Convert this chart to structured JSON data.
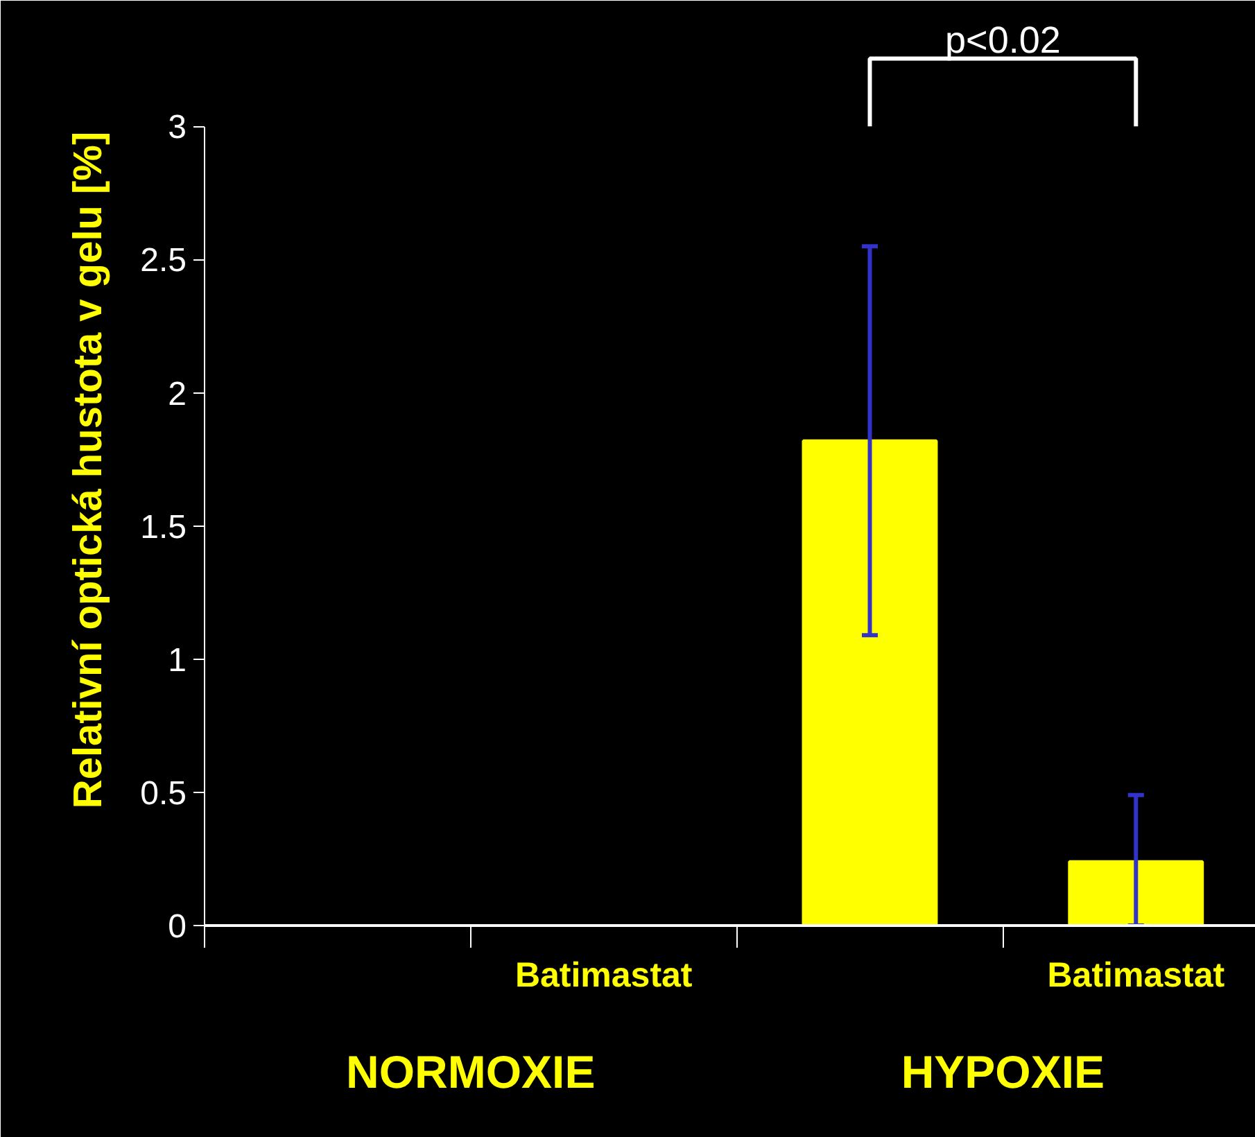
{
  "chart_data": {
    "type": "bar",
    "ylabel": "Relativní optická hustota v gelu [%]",
    "categories": [
      null,
      "Batimastat",
      null,
      "Batimastat"
    ],
    "values": [
      0,
      0,
      1.82,
      0.24
    ],
    "colors": [
      "#ffffff",
      "#ffffff",
      "#ffff00",
      "#ffff00"
    ],
    "errors": [
      null,
      null,
      [
        1.09,
        2.55
      ],
      [
        0.0,
        0.49
      ]
    ],
    "ylim": [
      0,
      3
    ],
    "yticks": [
      0,
      0.5,
      1,
      1.5,
      2,
      2.5,
      3
    ],
    "annotations": [
      "NORMOXIE",
      "HYPOXIE",
      "p<0.02"
    ]
  }
}
